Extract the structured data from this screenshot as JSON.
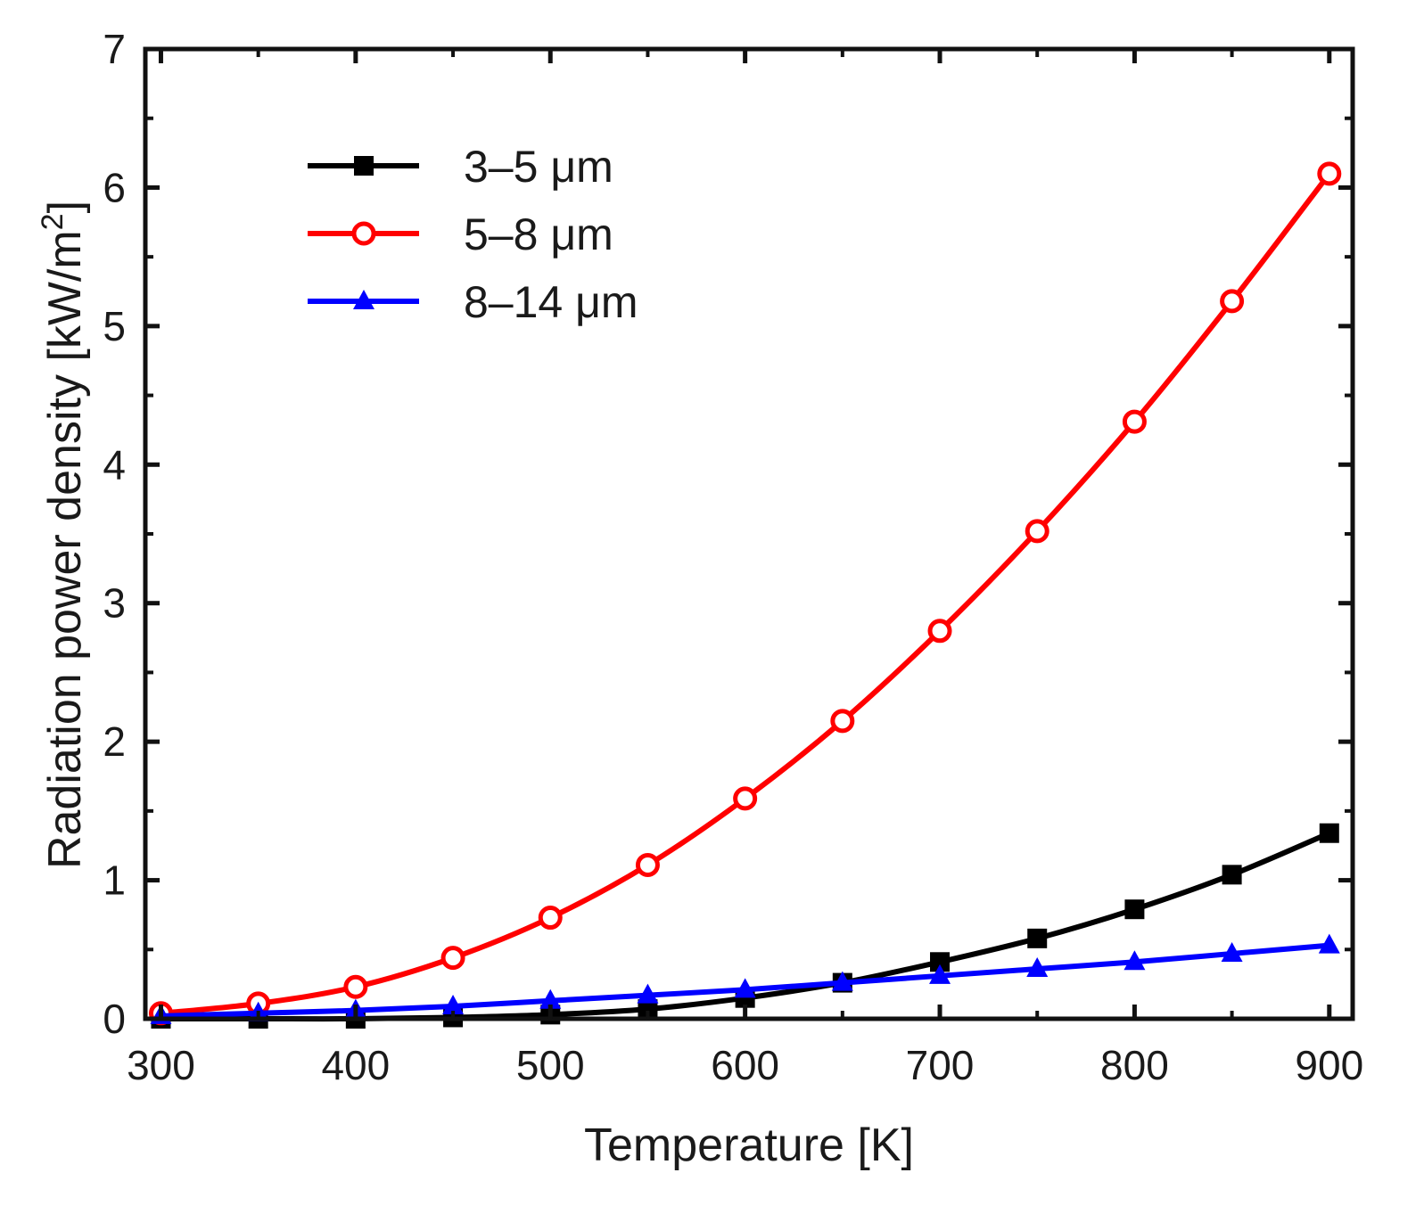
{
  "chart_data": {
    "type": "line",
    "title": "",
    "xlabel": "Temperature [K]",
    "ylabel": "Radiation power density [kW/m",
    "ylabel_superscript": "2",
    "ylabel_close": "]",
    "xlim": [
      292,
      912
    ],
    "ylim": [
      0,
      7
    ],
    "xticks": [
      300,
      400,
      500,
      600,
      700,
      800,
      900
    ],
    "xtick_labels": [
      "300",
      "400",
      "500",
      "600",
      "700",
      "800",
      "900"
    ],
    "yticks": [
      0,
      1,
      2,
      3,
      4,
      5,
      6,
      7
    ],
    "ytick_labels": [
      "0",
      "1",
      "2",
      "3",
      "4",
      "5",
      "6",
      "7"
    ],
    "grid": false,
    "legend_position": "top-left",
    "x": [
      300,
      350,
      400,
      450,
      500,
      550,
      600,
      650,
      700,
      750,
      800,
      850,
      900
    ],
    "series": [
      {
        "name": "3–5 μm",
        "color": "#000000",
        "marker": "square",
        "values": [
          0.0,
          0.0,
          0.0,
          0.01,
          0.03,
          0.07,
          0.15,
          0.26,
          0.41,
          0.58,
          0.79,
          1.04,
          1.34
        ]
      },
      {
        "name": "5–8 μm",
        "color": "#ff0000",
        "marker": "circle",
        "values": [
          0.04,
          0.11,
          0.23,
          0.44,
          0.73,
          1.11,
          1.59,
          2.15,
          2.8,
          3.52,
          4.31,
          5.18,
          6.1
        ]
      },
      {
        "name": "8–14 μm",
        "color": "#0000ff",
        "marker": "triangle",
        "values": [
          0.02,
          0.04,
          0.06,
          0.09,
          0.13,
          0.17,
          0.21,
          0.26,
          0.31,
          0.36,
          0.41,
          0.47,
          0.53
        ]
      }
    ]
  }
}
